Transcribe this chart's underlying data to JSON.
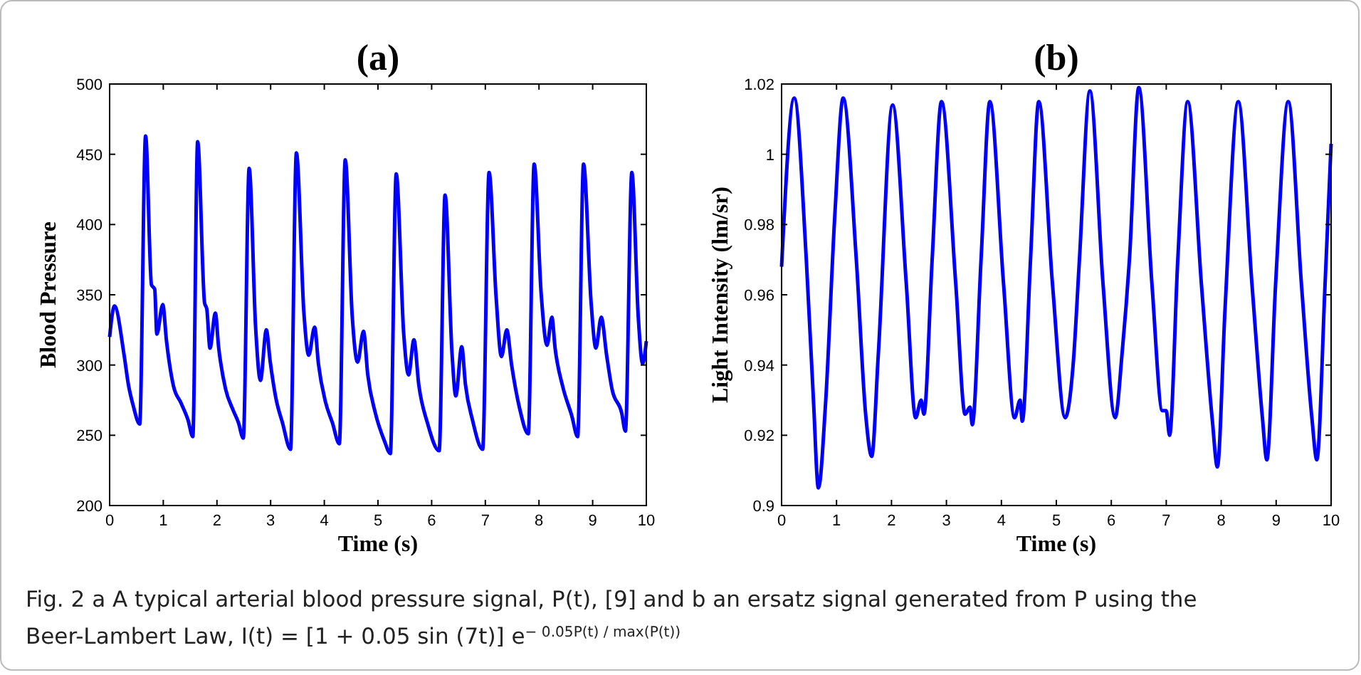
{
  "chart_data": [
    {
      "type": "line",
      "title": "(a)",
      "xlabel": "Time (s)",
      "ylabel": "Blood Pressure",
      "xlim": [
        0,
        10
      ],
      "ylim": [
        200,
        500
      ],
      "xticks": [
        0,
        1,
        2,
        3,
        4,
        5,
        6,
        7,
        8,
        9,
        10
      ],
      "yticks": [
        200,
        250,
        300,
        350,
        400,
        450,
        500
      ],
      "series": [
        {
          "color": "#0000ff",
          "x": [
            0,
            0.09,
            0.27,
            0.35,
            0.44,
            0.56,
            0.67,
            0.78,
            0.84,
            0.88,
            0.99,
            1.06,
            1.19,
            1.33,
            1.46,
            1.55,
            1.64,
            1.77,
            1.81,
            1.87,
            1.97,
            2.03,
            2.16,
            2.3,
            2.4,
            2.49,
            2.6,
            2.72,
            2.81,
            2.92,
            2.99,
            3.1,
            3.22,
            3.37,
            3.48,
            3.62,
            3.71,
            3.82,
            3.89,
            4.02,
            4.15,
            4.28,
            4.39,
            4.52,
            4.62,
            4.73,
            4.81,
            4.95,
            5.12,
            5.23,
            5.34,
            5.48,
            5.57,
            5.67,
            5.76,
            5.92,
            6.14,
            6.25,
            6.38,
            6.45,
            6.56,
            6.63,
            6.76,
            6.95,
            7.07,
            7.2,
            7.3,
            7.4,
            7.49,
            7.64,
            7.8,
            7.91,
            8.04,
            8.15,
            8.24,
            8.3,
            8.44,
            8.61,
            8.72,
            8.83,
            8.97,
            9.06,
            9.16,
            9.26,
            9.36,
            9.54,
            9.61,
            9.73,
            9.85,
            9.93,
            10
          ],
          "values": [
            320,
            342,
            307,
            286,
            271,
            258,
            463,
            357,
            354,
            322,
            343,
            317,
            285,
            273,
            261,
            249,
            459,
            344,
            340,
            312,
            337,
            313,
            283,
            268,
            259,
            248,
            440,
            327,
            289,
            325,
            303,
            276,
            259,
            240,
            451,
            337,
            307,
            327,
            301,
            274,
            259,
            244,
            446,
            335,
            302,
            324,
            293,
            266,
            246,
            237,
            436,
            322,
            293,
            318,
            286,
            259,
            239,
            421,
            308,
            278,
            313,
            286,
            261,
            240,
            437,
            349,
            306,
            325,
            300,
            269,
            251,
            443,
            351,
            314,
            334,
            312,
            285,
            264,
            249,
            443,
            345,
            312,
            334,
            307,
            283,
            266,
            253,
            437,
            334,
            301,
            317
          ]
        }
      ],
      "annotations": [
        "Fig. 2  a A typical arterial blood pressure signal, P(t), [9] and b an ersatz signal generated from P using the",
        "Beer-Lambert Law, I(t) = [1 + 0.05 sin (7t)] e$^{− 0.05P(t) / max(P(t))}$"
      ]
    },
    {
      "type": "line",
      "title": "(b)",
      "xlabel": "Time (s)",
      "ylabel": "Light Intensity (lm/sr)",
      "xlim": [
        0,
        10
      ],
      "ylim": [
        0.9,
        1.02
      ],
      "xticks": [
        0,
        1,
        2,
        3,
        4,
        5,
        6,
        7,
        8,
        9,
        10
      ],
      "yticks": [
        0.9,
        0.92,
        0.94,
        0.96,
        0.98,
        1,
        1.02
      ],
      "series": [
        {
          "color": "#0000ff",
          "x": [
            0,
            0.23,
            0.45,
            0.58,
            0.67,
            0.8,
            0.97,
            1.12,
            1.36,
            1.53,
            1.64,
            1.76,
            2.02,
            2.27,
            2.44,
            2.54,
            2.59,
            2.74,
            2.91,
            3.17,
            3.34,
            3.43,
            3.47,
            3.63,
            3.79,
            4.04,
            4.24,
            4.34,
            4.38,
            4.53,
            4.68,
            4.93,
            5.16,
            5.31,
            5.42,
            5.61,
            5.85,
            6.07,
            6.2,
            6.33,
            6.5,
            6.74,
            6.93,
            7.0,
            7.06,
            7.21,
            7.39,
            7.64,
            7.84,
            7.93,
            8.07,
            8.31,
            8.56,
            8.75,
            8.83,
            8.99,
            9.22,
            9.46,
            9.65,
            9.74,
            9.89,
            10
          ],
          "values": [
            0.968,
            1.016,
            0.97,
            0.93,
            0.905,
            0.929,
            0.983,
            1.016,
            0.97,
            0.926,
            0.914,
            0.943,
            1.014,
            0.963,
            0.925,
            0.93,
            0.926,
            0.97,
            1.015,
            0.963,
            0.926,
            0.928,
            0.923,
            0.97,
            1.015,
            0.963,
            0.925,
            0.93,
            0.924,
            0.97,
            1.015,
            0.963,
            0.925,
            0.941,
            0.97,
            1.018,
            0.963,
            0.925,
            0.944,
            0.97,
            1.019,
            0.963,
            0.927,
            0.927,
            0.92,
            0.97,
            1.015,
            0.963,
            0.924,
            0.911,
            0.956,
            1.015,
            0.963,
            0.925,
            0.913,
            0.963,
            1.015,
            0.963,
            0.925,
            0.913,
            0.963,
            1.003
          ]
        }
      ]
    }
  ]
}
